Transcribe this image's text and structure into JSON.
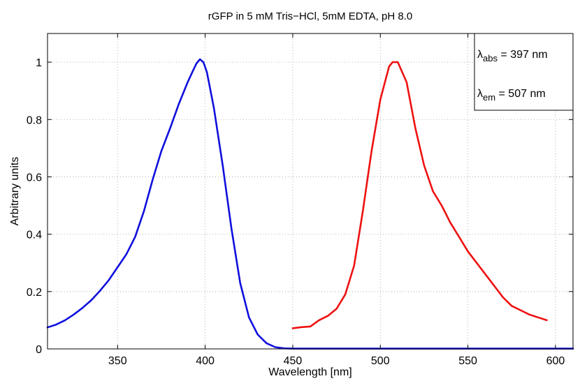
{
  "chart_data": {
    "type": "line",
    "title": "rGFP in 5 mM Tris−HCl, 5mM EDTA, pH 8.0",
    "xlabel": "Wavelength [nm]",
    "ylabel": "Arbitrary units",
    "xlim": [
      310,
      610
    ],
    "ylim": [
      0,
      1.1
    ],
    "x_ticks": [
      350,
      400,
      450,
      500,
      550,
      600
    ],
    "y_ticks": [
      0,
      0.2,
      0.4,
      0.6,
      0.8,
      1
    ],
    "x_tick_labels": [
      "350",
      "400",
      "450",
      "500",
      "550",
      "600"
    ],
    "y_tick_labels": [
      "0",
      "0.2",
      "0.4",
      "0.6",
      "0.8",
      "1"
    ],
    "grid": true,
    "annotations": {
      "abs_symbol": "λ",
      "abs_subscript": "abs",
      "abs_value": " = 397 nm",
      "em_symbol": "λ",
      "em_subscript": "em",
      "em_value": " = 507 nm"
    },
    "series": [
      {
        "color": "#1010dd",
        "x": [
          310,
          315,
          320,
          325,
          330,
          335,
          340,
          345,
          350,
          355,
          360,
          365,
          370,
          375,
          380,
          385,
          390,
          393,
          395,
          397,
          399,
          401,
          405,
          410,
          415,
          420,
          425,
          430,
          435,
          440,
          445,
          450,
          460,
          470,
          480,
          490,
          500,
          510,
          520,
          530,
          540,
          550,
          560,
          570,
          580,
          590,
          600,
          610
        ],
        "y": [
          0.075,
          0.085,
          0.1,
          0.12,
          0.143,
          0.17,
          0.203,
          0.24,
          0.285,
          0.33,
          0.39,
          0.48,
          0.59,
          0.69,
          0.77,
          0.855,
          0.93,
          0.97,
          0.995,
          1.01,
          1.0,
          0.965,
          0.84,
          0.64,
          0.42,
          0.23,
          0.11,
          0.05,
          0.02,
          0.006,
          0.002,
          0.001,
          0.001,
          0.001,
          0.001,
          0.001,
          0.001,
          0.001,
          0.001,
          0.001,
          0.001,
          0.001,
          0.001,
          0.001,
          0.001,
          0.001,
          0.001,
          0.001
        ]
      },
      {
        "color": "#ee1111",
        "x": [
          450,
          455,
          460,
          465,
          470,
          475,
          480,
          485,
          490,
          495,
          500,
          505,
          507,
          510,
          515,
          520,
          525,
          530,
          535,
          540,
          545,
          550,
          555,
          560,
          565,
          570,
          575,
          580,
          585,
          590,
          595
        ],
        "y": [
          0.072,
          0.076,
          0.078,
          0.1,
          0.115,
          0.14,
          0.19,
          0.29,
          0.48,
          0.69,
          0.87,
          0.985,
          1.0,
          1.0,
          0.93,
          0.77,
          0.64,
          0.55,
          0.5,
          0.44,
          0.39,
          0.34,
          0.3,
          0.26,
          0.22,
          0.18,
          0.15,
          0.135,
          0.12,
          0.11,
          0.1
        ]
      }
    ]
  }
}
